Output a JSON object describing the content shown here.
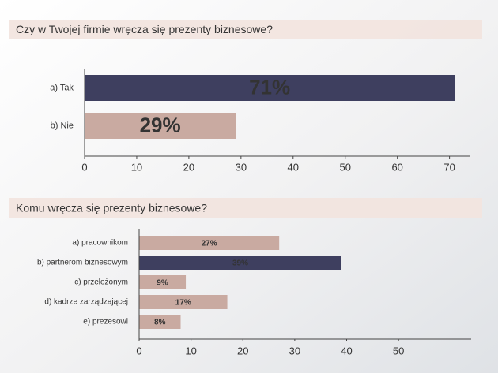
{
  "chart_data": [
    {
      "type": "bar",
      "orientation": "horizontal",
      "title": "Czy w Twojej firmie wręcza się prezenty biznesowe?",
      "categories": [
        "a) Tak",
        "b) Nie"
      ],
      "values": [
        71,
        29
      ],
      "value_labels": [
        "71%",
        "29%"
      ],
      "colors": [
        "#3e3f5f",
        "#c9aaa1"
      ],
      "xlim": [
        0,
        74
      ],
      "xticks": [
        0,
        10,
        20,
        30,
        40,
        50,
        60,
        70
      ]
    },
    {
      "type": "bar",
      "orientation": "horizontal",
      "title": "Komu wręcza się prezenty biznesowe?",
      "categories": [
        "a) pracownikom",
        "b) partnerom biznesowym",
        "c) przełożonym",
        "d) kadrze zarządzającej",
        "e) prezesowi"
      ],
      "values": [
        27,
        39,
        9,
        17,
        8
      ],
      "value_labels": [
        "27%",
        "39%",
        "9%",
        "17%",
        "8%"
      ],
      "colors": [
        "#c9aaa1",
        "#3e3f5f",
        "#c9aaa1",
        "#c9aaa1",
        "#c9aaa1"
      ],
      "xlim": [
        0,
        64
      ],
      "xticks": [
        0,
        10,
        20,
        30,
        40,
        50
      ]
    }
  ]
}
